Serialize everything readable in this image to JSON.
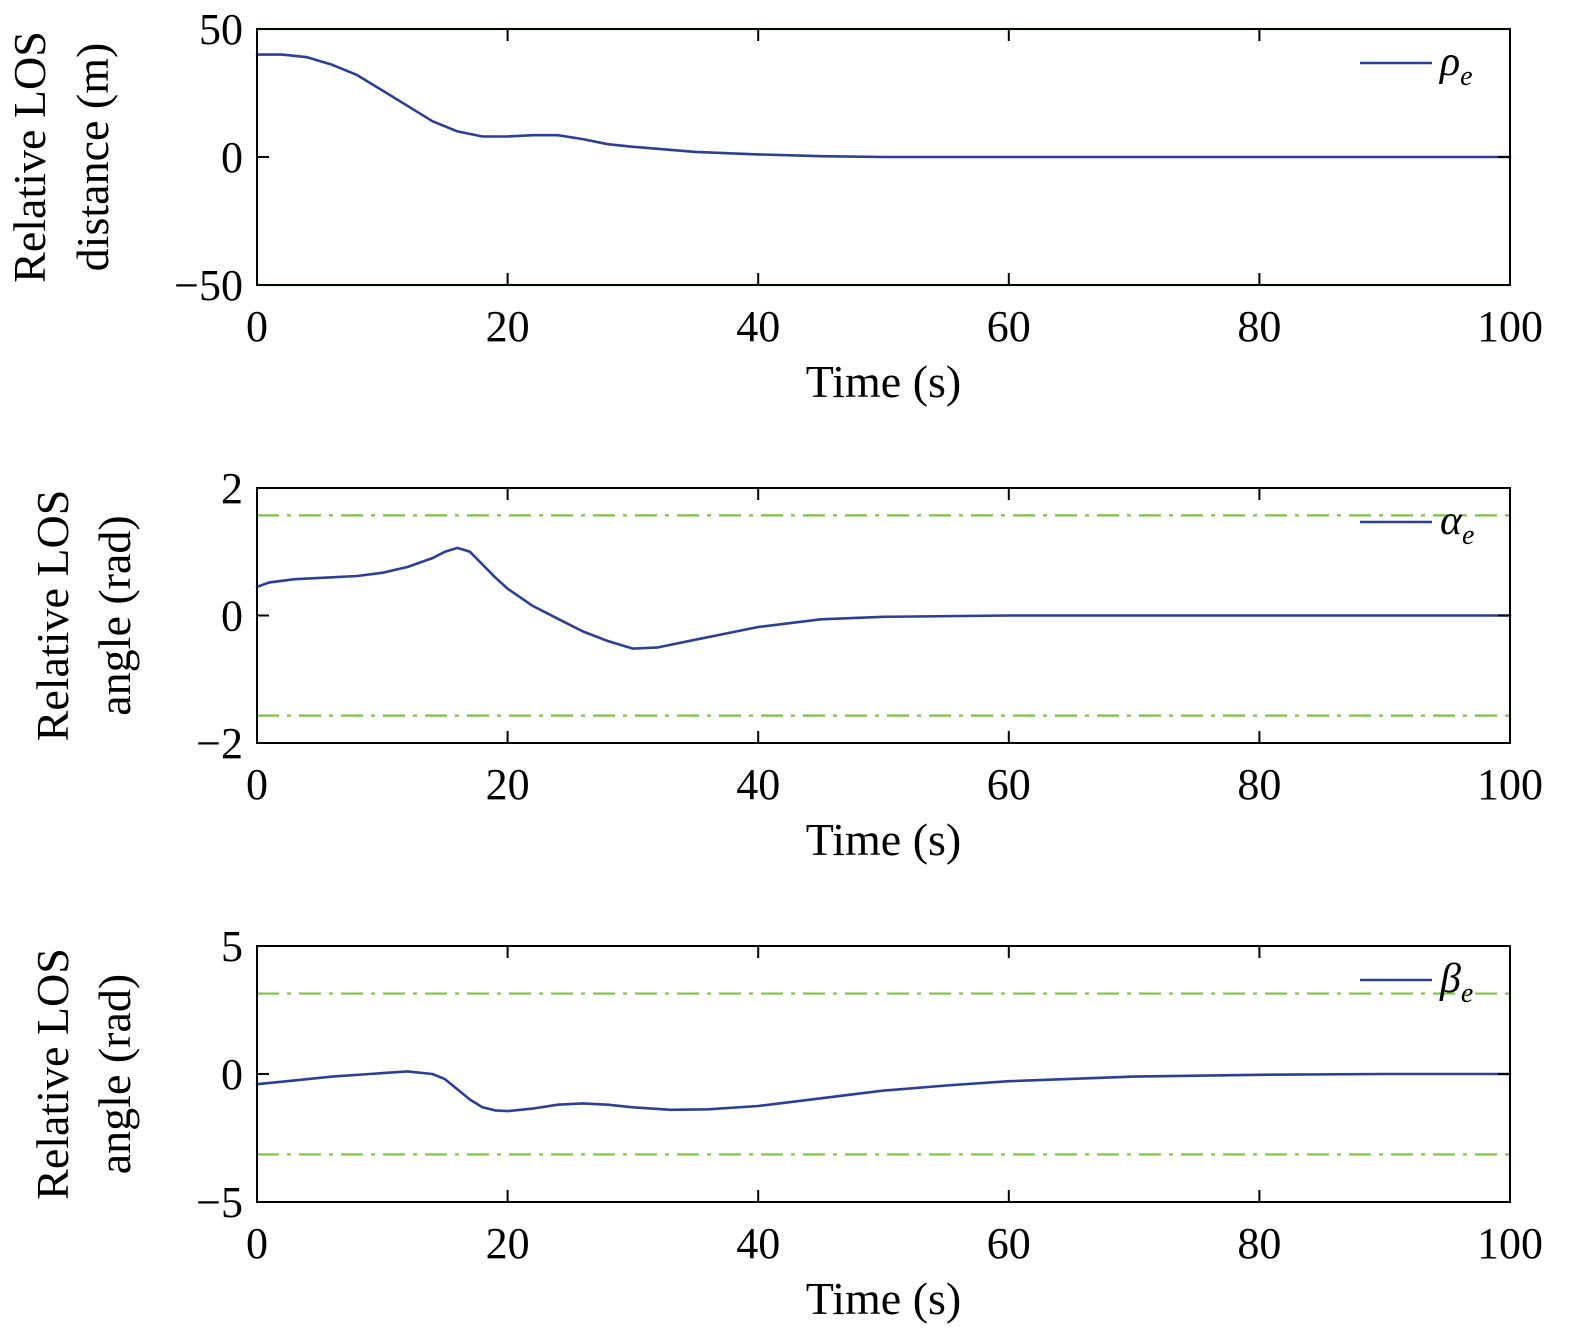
{
  "colors": {
    "series": "#2b3f95",
    "bound": "#7dc242",
    "bound_dash_overlay": "#000000"
  },
  "chart_data": [
    {
      "type": "line",
      "xlabel": "Time (s)",
      "ylabel": [
        "Relative LOS",
        "distance (m)"
      ],
      "xlim": [
        0,
        100
      ],
      "ylim": [
        -50,
        50
      ],
      "xticks": [
        "0",
        "20",
        "40",
        "60",
        "80",
        "100"
      ],
      "yticks": [
        "50",
        "0",
        "−50"
      ],
      "legend": {
        "symbol": "ρ",
        "subscript": "e",
        "position": "top-right"
      },
      "bounds": {
        "values": [
          50,
          -50
        ],
        "style": "dashed"
      },
      "series": [
        {
          "x": [
            0,
            2,
            4,
            6,
            8,
            10,
            12,
            14,
            16,
            18,
            20,
            22,
            24,
            26,
            28,
            30,
            35,
            40,
            45,
            50,
            60,
            70,
            80,
            90,
            100
          ],
          "y": [
            40,
            40,
            39,
            36,
            32,
            26,
            20,
            14,
            10,
            8,
            8,
            8.5,
            8.5,
            7,
            5,
            4,
            2,
            1,
            0.3,
            0,
            0,
            0,
            0,
            0,
            0
          ]
        }
      ]
    },
    {
      "type": "line",
      "xlabel": "Time (s)",
      "ylabel": [
        "Relative LOS",
        "angle (rad)"
      ],
      "xlim": [
        0,
        100
      ],
      "ylim": [
        -2,
        2
      ],
      "xticks": [
        "0",
        "20",
        "40",
        "60",
        "80",
        "100"
      ],
      "yticks": [
        "2",
        "0",
        "−2"
      ],
      "legend": {
        "symbol": "α",
        "subscript": "e",
        "position": "top-right"
      },
      "bounds": {
        "values": [
          1.5708,
          -1.5708
        ],
        "style": "dashdot"
      },
      "series": [
        {
          "x": [
            0,
            1,
            3,
            5,
            8,
            10,
            12,
            14,
            15,
            16,
            17,
            18,
            19,
            20,
            22,
            24,
            26,
            28,
            30,
            32,
            35,
            40,
            45,
            50,
            60,
            70,
            80,
            90,
            100
          ],
          "y": [
            0.45,
            0.52,
            0.57,
            0.59,
            0.62,
            0.67,
            0.76,
            0.9,
            1.0,
            1.06,
            1.0,
            0.8,
            0.6,
            0.42,
            0.15,
            -0.05,
            -0.25,
            -0.4,
            -0.52,
            -0.5,
            -0.38,
            -0.18,
            -0.06,
            -0.02,
            0,
            0,
            0,
            0,
            0
          ]
        }
      ]
    },
    {
      "type": "line",
      "xlabel": "Time (s)",
      "ylabel": [
        "Relative LOS",
        "angle (rad)"
      ],
      "xlim": [
        0,
        100
      ],
      "ylim": [
        -5,
        5
      ],
      "xticks": [
        "0",
        "20",
        "40",
        "60",
        "80",
        "100"
      ],
      "yticks": [
        "5",
        "0",
        "−5"
      ],
      "legend": {
        "symbol": "β",
        "subscript": "e",
        "position": "top-right"
      },
      "bounds": {
        "values": [
          3.1416,
          -3.1416
        ],
        "style": "dashdot"
      },
      "series": [
        {
          "x": [
            0,
            3,
            6,
            9,
            12,
            14,
            15,
            16,
            17,
            18,
            19,
            20,
            22,
            24,
            26,
            28,
            30,
            33,
            36,
            40,
            45,
            50,
            55,
            60,
            70,
            80,
            90,
            100
          ],
          "y": [
            -0.4,
            -0.25,
            -0.1,
            0.0,
            0.1,
            0.0,
            -0.2,
            -0.6,
            -1.0,
            -1.3,
            -1.42,
            -1.45,
            -1.35,
            -1.2,
            -1.15,
            -1.2,
            -1.3,
            -1.4,
            -1.38,
            -1.25,
            -0.95,
            -0.65,
            -0.45,
            -0.28,
            -0.1,
            -0.03,
            0,
            0
          ]
        }
      ]
    }
  ]
}
